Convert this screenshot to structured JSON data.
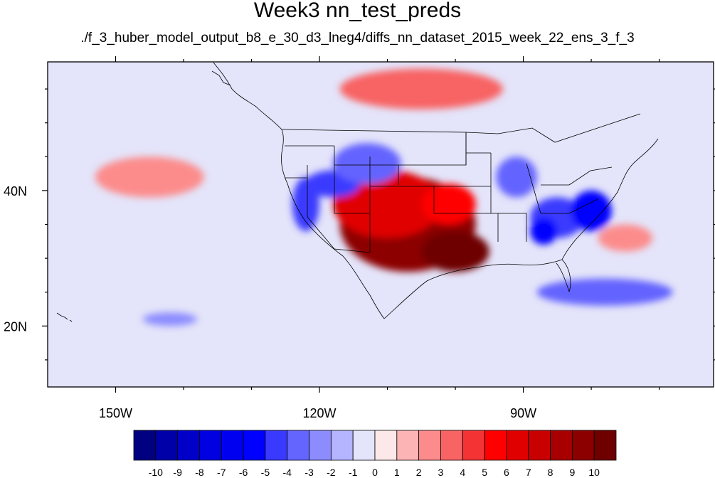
{
  "title": "Week3 nn_test_preds",
  "subtitle": "./f_3_huber_model_output_b8_e_30_d3_lneg4/diffs_nn_dataset_2015_week_22_ens_3_f_3",
  "map": {
    "projection": "cylindrical-equidistant",
    "lon_range": [
      -160,
      -62
    ],
    "lat_range": [
      11,
      59
    ],
    "lat_tick_labels": [
      {
        "lat": 40,
        "label": "40N"
      },
      {
        "lat": 20,
        "label": "20N"
      }
    ],
    "lon_tick_labels": [
      {
        "lon": -150,
        "label": "150W"
      },
      {
        "lon": -120,
        "label": "120W"
      },
      {
        "lon": -90,
        "label": "90W"
      }
    ],
    "major_lat_ticks": [
      20,
      40
    ],
    "minor_lat_ticks": [
      15,
      25,
      30,
      35,
      45,
      50,
      55
    ],
    "major_lon_ticks": [
      -150,
      -120,
      -90
    ],
    "minor_lon_ticks": [
      -140,
      -130,
      -110,
      -100,
      -80,
      -70
    ]
  },
  "colorbar": {
    "labels": [
      "-10",
      "-9",
      "-8",
      "-7",
      "-6",
      "-5",
      "-4",
      "-3",
      "-2",
      "-1",
      "0",
      "1",
      "2",
      "3",
      "4",
      "5",
      "6",
      "7",
      "8",
      "9",
      "10"
    ],
    "colors": [
      "#000080",
      "#0000a8",
      "#0000c8",
      "#0000e0",
      "#0000f0",
      "#0000ff",
      "#3a3aff",
      "#6464ff",
      "#8c8cff",
      "#b4b4ff",
      "#e4e4fa",
      "#fce8e8",
      "#fcb4b4",
      "#fc8c8c",
      "#f86464",
      "#f43434",
      "#ff0000",
      "#e00000",
      "#c80000",
      "#a80000",
      "#8c0000",
      "#6e0000"
    ]
  },
  "field_features": [
    {
      "lon": -107,
      "lat": 35,
      "value": 9,
      "r_lon": 10,
      "r_lat": 7
    },
    {
      "lon": -110,
      "lat": 38,
      "value": 6,
      "r_lon": 8,
      "r_lat": 5
    },
    {
      "lon": -100,
      "lat": 31,
      "value": 10,
      "r_lon": 5,
      "r_lat": 3
    },
    {
      "lon": -101,
      "lat": 38,
      "value": 5,
      "r_lon": 4,
      "r_lat": 3
    },
    {
      "lon": -118,
      "lat": 41,
      "value": -5,
      "r_lon": 4,
      "r_lat": 2
    },
    {
      "lon": -122,
      "lat": 38,
      "value": -5,
      "r_lon": 2,
      "r_lat": 4
    },
    {
      "lon": -113,
      "lat": 44,
      "value": -4,
      "r_lon": 5,
      "r_lat": 3
    },
    {
      "lon": -85,
      "lat": 36,
      "value": -5,
      "r_lon": 4,
      "r_lat": 3
    },
    {
      "lon": -80,
      "lat": 37,
      "value": -6,
      "r_lon": 3,
      "r_lat": 3
    },
    {
      "lon": -87,
      "lat": 34,
      "value": -6,
      "r_lon": 2,
      "r_lat": 2
    },
    {
      "lon": -91,
      "lat": 42,
      "value": -4,
      "r_lon": 3,
      "r_lat": 3
    },
    {
      "lon": -105,
      "lat": 55,
      "value": 3,
      "r_lon": 12,
      "r_lat": 3
    },
    {
      "lon": -145,
      "lat": 42,
      "value": 2,
      "r_lon": 8,
      "r_lat": 3
    },
    {
      "lon": -78,
      "lat": 25,
      "value": -4,
      "r_lon": 10,
      "r_lat": 2
    },
    {
      "lon": -142,
      "lat": 21,
      "value": -3,
      "r_lon": 4,
      "r_lat": 1
    },
    {
      "lon": -75,
      "lat": 33,
      "value": 2,
      "r_lon": 4,
      "r_lat": 2
    }
  ]
}
